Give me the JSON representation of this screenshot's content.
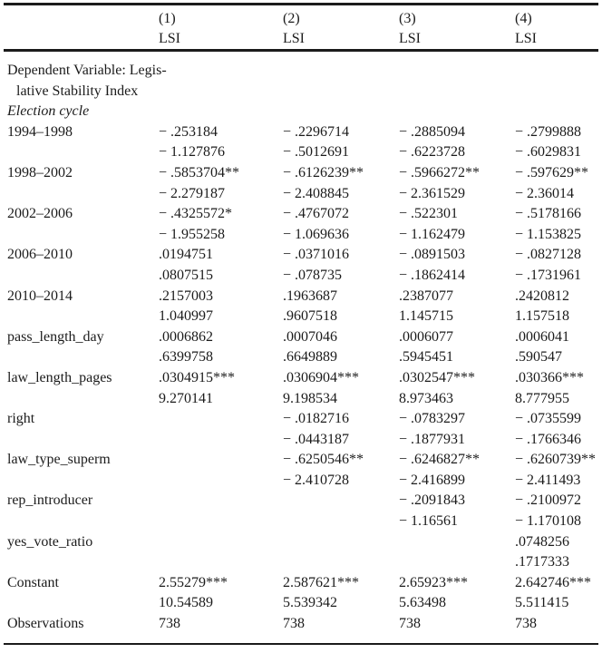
{
  "page": {
    "background": "#ffffff",
    "text_color": "#1b1b1b"
  },
  "table": {
    "header": {
      "cols": [
        {
          "number": "(1)",
          "dep_var": "LSI"
        },
        {
          "number": "(2)",
          "dep_var": "LSI"
        },
        {
          "number": "(3)",
          "dep_var": "LSI"
        },
        {
          "number": "(4)",
          "dep_var": "LSI"
        }
      ]
    },
    "lines": [
      {
        "label": "Dependent Variable: Legis-",
        "style": "plain",
        "cells": [
          "",
          "",
          "",
          ""
        ]
      },
      {
        "label": "lative Stability Index",
        "style": "indent",
        "cells": [
          "",
          "",
          "",
          ""
        ]
      },
      {
        "label": "Election cycle",
        "style": "italic",
        "cells": [
          "",
          "",
          "",
          ""
        ]
      },
      {
        "label": "1994–1998",
        "style": "plain",
        "cells": [
          "− .253184",
          "− .2296714",
          "− .2885094",
          "− .2799888"
        ]
      },
      {
        "label": "",
        "style": "plain",
        "cells": [
          "− 1.127876",
          "− .5012691",
          "− .6223728",
          "− .6029831"
        ]
      },
      {
        "label": "1998–2002",
        "style": "plain",
        "cells": [
          "− .5853704**",
          "− .6126239**",
          "− .5966272**",
          "− .597629**"
        ]
      },
      {
        "label": "",
        "style": "plain",
        "cells": [
          "− 2.279187",
          "− 2.408845",
          "− 2.361529",
          "− 2.36014"
        ]
      },
      {
        "label": "2002–2006",
        "style": "plain",
        "cells": [
          "− .4325572*",
          "− .4767072",
          "− .522301",
          "− .5178166"
        ]
      },
      {
        "label": "",
        "style": "plain",
        "cells": [
          "− 1.955258",
          "− 1.069636",
          "− 1.162479",
          "− 1.153825"
        ]
      },
      {
        "label": "2006–2010",
        "style": "plain",
        "cells": [
          ".0194751",
          "− .0371016",
          "− .0891503",
          "− .0827128"
        ]
      },
      {
        "label": "",
        "style": "plain",
        "cells": [
          ".0807515",
          "− .078735",
          "− .1862414",
          "− .1731961"
        ]
      },
      {
        "label": "2010–2014",
        "style": "plain",
        "cells": [
          ".2157003",
          ".1963687",
          ".2387077",
          ".2420812"
        ]
      },
      {
        "label": "",
        "style": "plain",
        "cells": [
          "1.040997",
          ".9607518",
          "1.145715",
          "1.157518"
        ]
      },
      {
        "label": "pass_length_day",
        "style": "plain",
        "cells": [
          ".0006862",
          ".0007046",
          ".0006077",
          ".0006041"
        ]
      },
      {
        "label": "",
        "style": "plain",
        "cells": [
          ".6399758",
          ".6649889",
          ".5945451",
          ".590547"
        ]
      },
      {
        "label": "law_length_pages",
        "style": "plain",
        "cells": [
          ".0304915***",
          ".0306904***",
          ".0302547***",
          ".030366***"
        ]
      },
      {
        "label": "",
        "style": "plain",
        "cells": [
          "9.270141",
          "9.198534",
          "8.973463",
          "8.777955"
        ]
      },
      {
        "label": "right",
        "style": "plain",
        "cells": [
          "",
          "− .0182716",
          "− .0783297",
          "− .0735599"
        ]
      },
      {
        "label": "",
        "style": "plain",
        "cells": [
          "",
          "− .0443187",
          "− .1877931",
          "− .1766346"
        ]
      },
      {
        "label": "law_type_superm",
        "style": "plain",
        "cells": [
          "",
          "− .6250546**",
          "− .6246827**",
          "− .6260739**"
        ]
      },
      {
        "label": "",
        "style": "plain",
        "cells": [
          "",
          "− 2.410728",
          "− 2.416899",
          "− 2.411493"
        ]
      },
      {
        "label": "rep_introducer",
        "style": "plain",
        "cells": [
          "",
          "",
          "− .2091843",
          "− .2100972"
        ]
      },
      {
        "label": "",
        "style": "plain",
        "cells": [
          "",
          "",
          "− 1.16561",
          "− 1.170108"
        ]
      },
      {
        "label": "yes_vote_ratio",
        "style": "plain",
        "cells": [
          "",
          "",
          "",
          ".0748256"
        ]
      },
      {
        "label": "",
        "style": "plain",
        "cells": [
          "",
          "",
          "",
          ".1717333"
        ]
      },
      {
        "label": "Constant",
        "style": "plain",
        "cells": [
          "2.55279***",
          "2.587621***",
          "2.65923***",
          "2.642746***"
        ]
      },
      {
        "label": "",
        "style": "plain",
        "cells": [
          "10.54589",
          "5.539342",
          "5.63498",
          "5.511415"
        ]
      },
      {
        "label": "Observations",
        "style": "plain",
        "cells": [
          "738",
          "738",
          "738",
          "738"
        ]
      }
    ]
  }
}
